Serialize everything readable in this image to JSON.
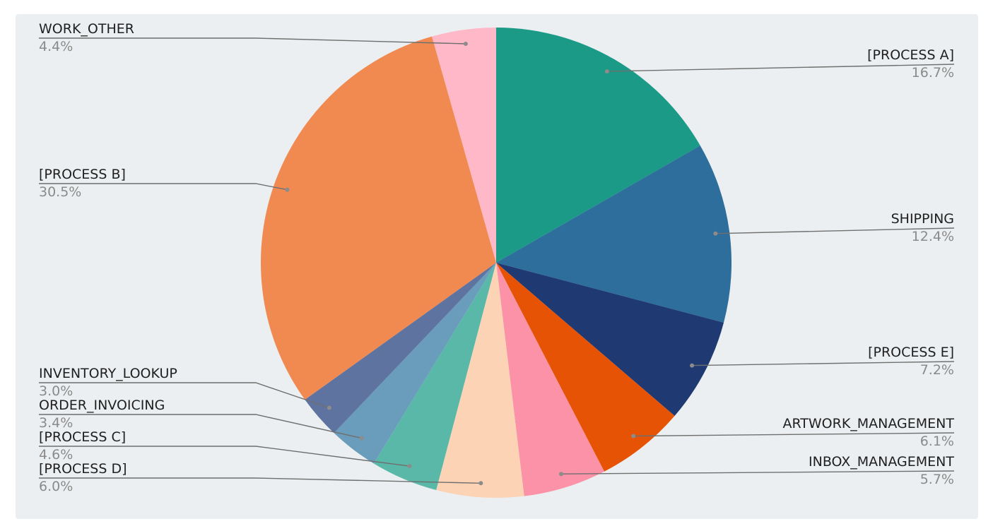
{
  "chart_data": {
    "type": "pie",
    "title": "",
    "start_angle_deg": 0,
    "direction": "clockwise",
    "slices": [
      {
        "label": "[PROCESS A]",
        "value": 16.7,
        "percent_label": "16.7%",
        "color": "#1b9a87",
        "side": "right"
      },
      {
        "label": "SHIPPING",
        "value": 12.4,
        "percent_label": "12.4%",
        "color": "#2e6e9c",
        "side": "right"
      },
      {
        "label": "[PROCESS E]",
        "value": 7.2,
        "percent_label": "7.2%",
        "color": "#1f3a73",
        "side": "right"
      },
      {
        "label": "ARTWORK_MANAGEMENT",
        "value": 6.1,
        "percent_label": "6.1%",
        "color": "#e65304",
        "side": "right"
      },
      {
        "label": "INBOX_MANAGEMENT",
        "value": 5.7,
        "percent_label": "5.7%",
        "color": "#fb92a8",
        "side": "right"
      },
      {
        "label": "[PROCESS D]",
        "value": 6.0,
        "percent_label": "6.0%",
        "color": "#fdd3b5",
        "side": "left"
      },
      {
        "label": "[PROCESS C]",
        "value": 4.6,
        "percent_label": "4.6%",
        "color": "#5ab8a8",
        "side": "left"
      },
      {
        "label": "ORDER_INVOICING",
        "value": 3.4,
        "percent_label": "3.4%",
        "color": "#6a9cbb",
        "side": "left"
      },
      {
        "label": "INVENTORY_LOOKUP",
        "value": 3.0,
        "percent_label": "3.0%",
        "color": "#5e739f",
        "side": "left"
      },
      {
        "label": "[PROCESS B]",
        "value": 30.5,
        "percent_label": "30.5%",
        "color": "#f08a50",
        "side": "left"
      },
      {
        "label": "WORK_OTHER",
        "value": 4.4,
        "percent_label": "4.4%",
        "color": "#ffb8c7",
        "side": "left"
      }
    ]
  },
  "style": {
    "background": "#eceff1",
    "label_text_color": "#1f1f1f",
    "percent_text_color": "#8a8a8a",
    "leader_line_color": "#6f6f6f"
  }
}
